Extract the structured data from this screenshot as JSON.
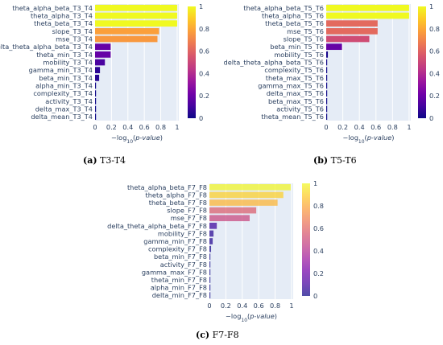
{
  "figure": {
    "captions": [
      {
        "id": "a",
        "text": "T3-T4"
      },
      {
        "id": "b",
        "text": "T5-T6"
      },
      {
        "id": "c",
        "text": "F7-F8"
      }
    ]
  },
  "chart_data": [
    {
      "type": "bar",
      "orientation": "horizontal",
      "title": "",
      "xlabel": "−log10(p-value)",
      "xlim": [
        0,
        1.02
      ],
      "xticks": [
        0,
        0.2,
        0.4,
        0.6,
        0.8,
        1
      ],
      "colorbar": {
        "min": 0,
        "max": 1,
        "ticks": [
          0,
          0.2,
          0.4,
          0.6,
          0.8,
          1
        ]
      },
      "categories": [
        "theta_alpha_beta_T3_T4",
        "theta_alpha_T3_T4",
        "theta_beta_T3_T4",
        "slope_T3_T4",
        "mse_T3_T4",
        "delta_theta_alpha_beta_T3_T4",
        "theta_min_T3_T4",
        "mobility_T3_T4",
        "gamma_min_T3_T4",
        "beta_min_T3_T4",
        "alpha_min_T3_T4",
        "complexity_T3_T4",
        "activity_T3_T4",
        "delta_max_T3_T4",
        "delta_mean_T3_T4"
      ],
      "values": [
        1.0,
        1.0,
        1.0,
        0.78,
        0.76,
        0.19,
        0.19,
        0.12,
        0.06,
        0.05,
        0.01,
        0.005,
        0.003,
        0.002,
        0.001
      ]
    },
    {
      "type": "bar",
      "orientation": "horizontal",
      "title": "",
      "xlabel": "−log10(p-value)",
      "xlim": [
        0,
        1.02
      ],
      "xticks": [
        0,
        0.2,
        0.4,
        0.6,
        0.8,
        1
      ],
      "colorbar": {
        "min": 0,
        "max": 1,
        "ticks": [
          0,
          0.2,
          0.4,
          0.6,
          0.8,
          1
        ]
      },
      "categories": [
        "theta_alpha_beta_T5_T6",
        "theta_alpha_T5_T6",
        "theta_beta_T5_T6",
        "mse_T5_T6",
        "slope_T5_T6",
        "beta_min_T5_T6",
        "mobility_T5_T6",
        "delta_theta_alpha_beta_T5_T6",
        "complexity_T5_T6",
        "theta_max_T5_T6",
        "gamma_max_T5_T6",
        "delta_max_T5_T6",
        "beta_max_T5_T6",
        "activity_T5_T6",
        "theta_mean_T5_T6"
      ],
      "values": [
        1.0,
        1.0,
        0.62,
        0.62,
        0.52,
        0.19,
        0.02,
        0.01,
        0.005,
        0.004,
        0.003,
        0.002,
        0.002,
        0.001,
        0.001
      ]
    },
    {
      "type": "bar",
      "orientation": "horizontal",
      "title": "",
      "xlabel": "−log10(p-value)",
      "xlim": [
        0,
        1.02
      ],
      "xticks": [
        0,
        0.2,
        0.4,
        0.6,
        0.8,
        1
      ],
      "colorbar": {
        "min": 0,
        "max": 1,
        "ticks": [
          0,
          0.2,
          0.4,
          0.6,
          0.8,
          1
        ]
      },
      "categories": [
        "theta_alpha_beta_F7_F8",
        "theta_alpha_F7_F8",
        "theta_beta_F7_F8",
        "slope_F7_F8",
        "mse_F7_F8",
        "delta_theta_alpha_beta_F7_F8",
        "mobility_F7_F8",
        "gamma_min_F7_F8",
        "complexity_F7_F8",
        "beta_min_F7_F8",
        "activity_F7_F8",
        "gamma_max_F7_F8",
        "theta_min_F7_F8",
        "alpha_min_F7_F8",
        "delta_min_F7_F8"
      ],
      "values": [
        0.99,
        0.9,
        0.83,
        0.57,
        0.49,
        0.09,
        0.05,
        0.04,
        0.02,
        0.01,
        0.005,
        0.004,
        0.003,
        0.002,
        0.001
      ]
    }
  ]
}
